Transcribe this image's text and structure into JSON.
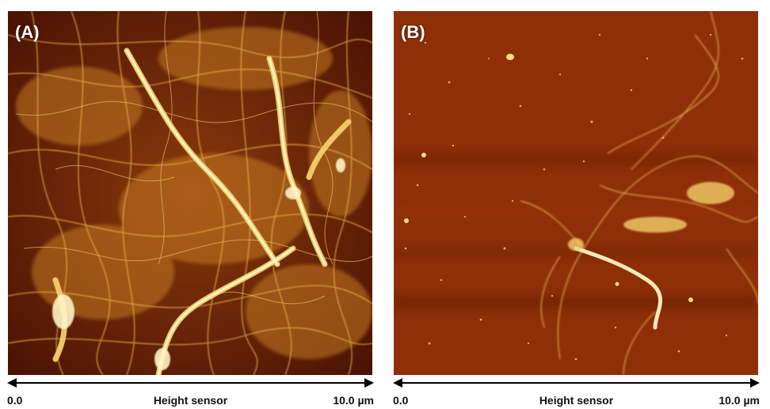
{
  "panels": [
    {
      "label": "(A)"
    },
    {
      "label": "(B)"
    }
  ],
  "scale_bars": [
    {
      "min": "0.0",
      "caption": "Height sensor",
      "max": "10.0 µm"
    },
    {
      "min": "0.0",
      "caption": "Height sensor",
      "max": "10.0 µm"
    }
  ],
  "colors": {
    "background_dark": "#5a1a04",
    "background_b": "#8a2e08",
    "fiber_light": "#f4d06a",
    "fiber_bright": "#fff3c4"
  }
}
